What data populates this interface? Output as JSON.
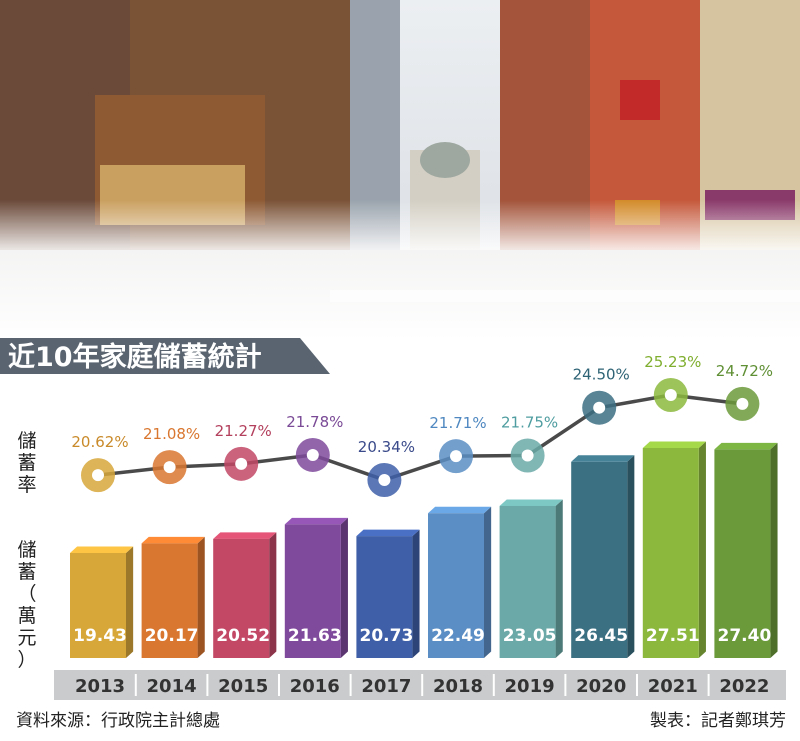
{
  "colors": {
    "line": "#4a4a4a",
    "title_band": "#5a6470",
    "year_bar": "#c9cbcc",
    "bars": [
      "#d7a73a",
      "#d9762f",
      "#c24866",
      "#7f4a9c",
      "#3f5fa8",
      "#5b8ec4",
      "#6aa9a7",
      "#3b6f82",
      "#8cb83e",
      "#6b9a3a"
    ],
    "label_colors": [
      "#c98a2a",
      "#d9762f",
      "#b3405d",
      "#7a4a96",
      "#3a4a8a",
      "#4f88c0",
      "#4f9da0",
      "#2e6375",
      "#7fae2e",
      "#5f8f34"
    ]
  },
  "chart_data": {
    "type": "bar",
    "title": "近10年家庭儲蓄統計",
    "categories": [
      "2013",
      "2014",
      "2015",
      "2016",
      "2017",
      "2018",
      "2019",
      "2020",
      "2021",
      "2022"
    ],
    "series": [
      {
        "values": [
          19.43,
          20.17,
          20.52,
          21.63,
          20.73,
          22.49,
          23.05,
          26.45,
          27.51,
          27.4
        ],
        "label_format": "fixed2"
      },
      {
        "values": [
          20.62,
          21.08,
          21.27,
          21.78,
          20.34,
          21.71,
          21.75,
          24.5,
          25.23,
          24.72
        ],
        "label_format": "percent"
      }
    ],
    "ylabel_rate": "儲蓄率",
    "ylabel_savings": "儲蓄（萬元）"
  },
  "footer": {
    "source": "資料來源：行政院主計總處",
    "credit": "製表：記者鄭琪芳"
  }
}
